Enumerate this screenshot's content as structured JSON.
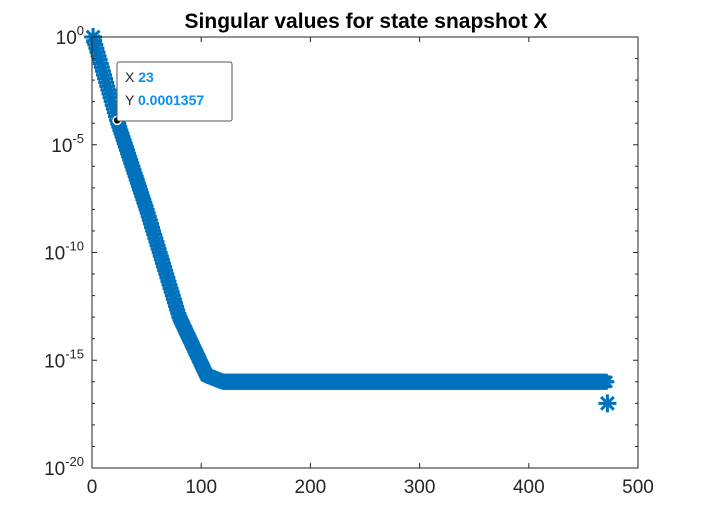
{
  "chart_data": {
    "type": "scatter",
    "title": "Singular values for state snapshot X",
    "xlabel": "",
    "ylabel": "",
    "xlim": [
      0,
      500
    ],
    "ylim_log10": [
      -20,
      0
    ],
    "y_scale": "log",
    "x_ticks": [
      "0",
      "100",
      "200",
      "300",
      "400",
      "500"
    ],
    "y_ticks": [
      {
        "base": "10",
        "exp": "0"
      },
      {
        "base": "10",
        "exp": "-5"
      },
      {
        "base": "10",
        "exp": "-10"
      },
      {
        "base": "10",
        "exp": "-15"
      },
      {
        "base": "10",
        "exp": "-20"
      }
    ],
    "grid": false,
    "marker": "asterisk",
    "series_color": "#0072bd",
    "n_points": 472,
    "decay_curve": [
      {
        "x": 1,
        "y": 1
      },
      {
        "x": 23,
        "y": 0.0001357
      },
      {
        "x": 50,
        "y": 1e-08
      },
      {
        "x": 80,
        "y": 1e-13
      },
      {
        "x": 105,
        "y": 2e-16
      },
      {
        "x": 120,
        "y": 1e-16
      },
      {
        "x": 472,
        "y": 1e-16
      }
    ],
    "last_point": {
      "x": 472,
      "y": 1e-17
    },
    "datatip": {
      "x_label": "X",
      "x_value": "23",
      "y_label": "Y",
      "y_value": "0.0001357",
      "x": 23,
      "y": 0.0001357
    }
  }
}
